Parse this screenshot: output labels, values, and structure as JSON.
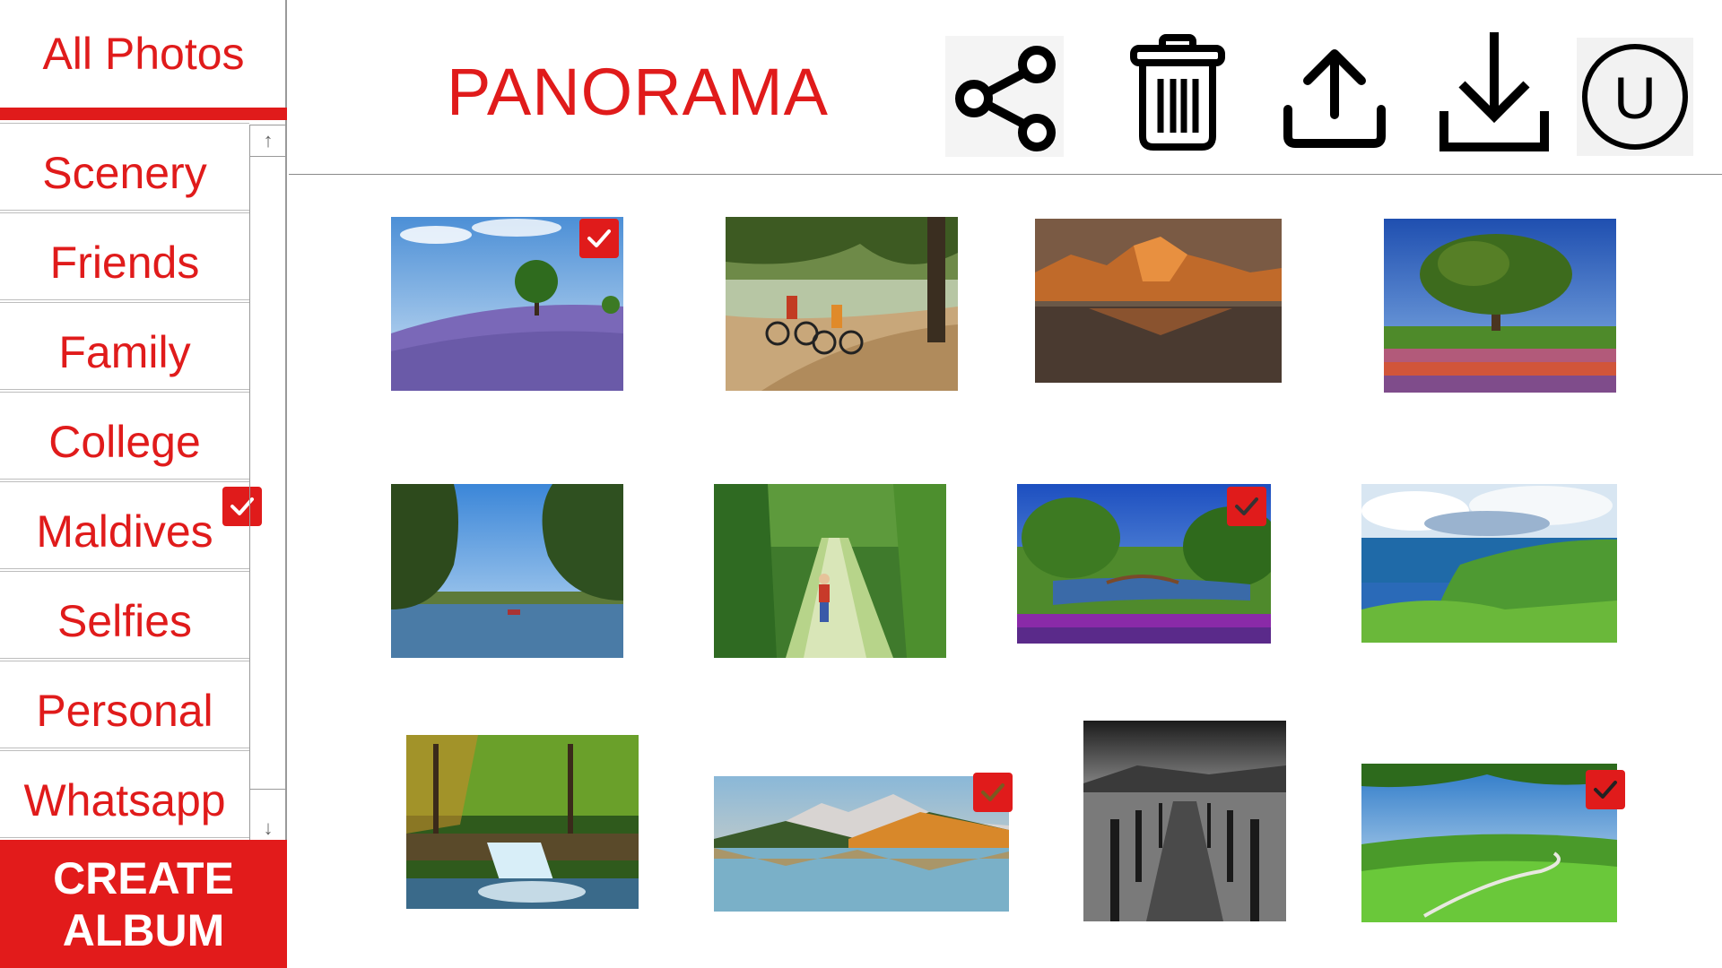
{
  "sidebar": {
    "all_photos_label": "All Photos",
    "albums": [
      {
        "label": "Scenery"
      },
      {
        "label": "Friends"
      },
      {
        "label": "Family"
      },
      {
        "label": "College"
      },
      {
        "label": "Maldives",
        "checked": true
      },
      {
        "label": "Selfies"
      },
      {
        "label": "Personal"
      },
      {
        "label": "Whatsapp"
      }
    ],
    "scroll_up_glyph": "↑",
    "scroll_down_glyph": "↓",
    "create_album_line1": "CREATE",
    "create_album_line2": "ALBUM"
  },
  "header": {
    "title": "PANORAMA",
    "actions": [
      {
        "name": "share-icon"
      },
      {
        "name": "trash-icon"
      },
      {
        "name": "upload-icon"
      },
      {
        "name": "download-icon"
      },
      {
        "name": "user-avatar-icon",
        "letter": "U"
      }
    ]
  },
  "photos": [
    {
      "name": "lavender-hill-tree",
      "selected": true
    },
    {
      "name": "cyclists-dirt-road",
      "selected": false
    },
    {
      "name": "mountain-lake-sunset",
      "selected": false
    },
    {
      "name": "tree-flower-field",
      "selected": false
    },
    {
      "name": "river-trees",
      "selected": false
    },
    {
      "name": "child-forest-path",
      "selected": false
    },
    {
      "name": "garden-bridge-pond",
      "selected": true
    },
    {
      "name": "coastal-cliffs",
      "selected": false
    },
    {
      "name": "forest-waterfall",
      "selected": false
    },
    {
      "name": "autumn-lake-mountains",
      "selected": true
    },
    {
      "name": "bw-pier",
      "selected": false
    },
    {
      "name": "green-valley",
      "selected": true
    }
  ],
  "colors": {
    "accent": "#e01b1b",
    "divider": "#bdbdbd"
  }
}
